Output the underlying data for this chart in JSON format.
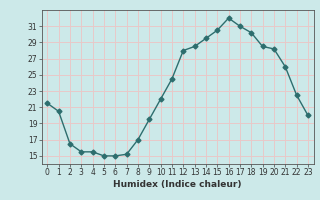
{
  "x": [
    0,
    1,
    2,
    3,
    4,
    5,
    6,
    7,
    8,
    9,
    10,
    11,
    12,
    13,
    14,
    15,
    16,
    17,
    18,
    19,
    20,
    21,
    22,
    23
  ],
  "y": [
    21.5,
    20.5,
    16.5,
    15.5,
    15.5,
    15.0,
    15.0,
    15.2,
    17.0,
    19.5,
    22.0,
    24.5,
    28.0,
    28.5,
    29.5,
    30.5,
    32.0,
    31.0,
    30.2,
    28.5,
    28.2,
    26.0,
    22.5,
    20.0
  ],
  "line_color": "#2d6e6e",
  "marker": "D",
  "marker_size": 2.5,
  "background_color": "#cce9e9",
  "grid_color": "#e8c8c8",
  "xlabel": "Humidex (Indice chaleur)",
  "ylim": [
    14,
    33
  ],
  "xlim": [
    -0.5,
    23.5
  ],
  "yticks": [
    15,
    17,
    19,
    21,
    23,
    25,
    27,
    29,
    31
  ],
  "xticks": [
    0,
    1,
    2,
    3,
    4,
    5,
    6,
    7,
    8,
    9,
    10,
    11,
    12,
    13,
    14,
    15,
    16,
    17,
    18,
    19,
    20,
    21,
    22,
    23
  ],
  "tick_label_fontsize": 5.5,
  "xlabel_fontsize": 6.5,
  "line_width": 1.0
}
